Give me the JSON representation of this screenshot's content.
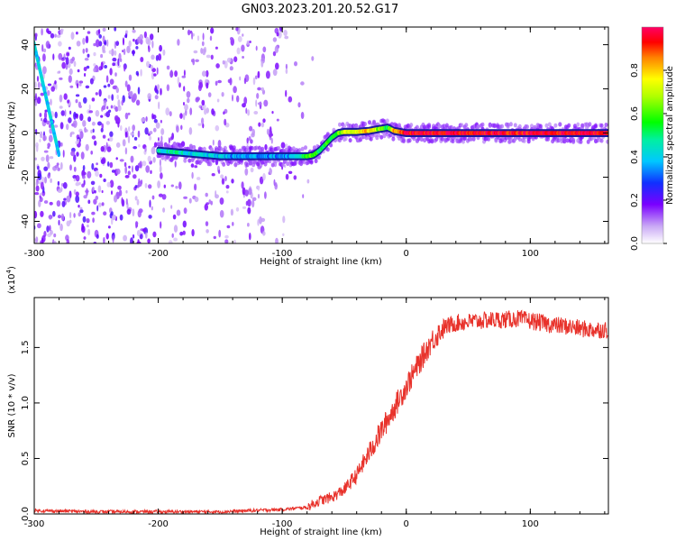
{
  "title": "GN03.2023.201.20.52.G17",
  "chart_data": [
    {
      "type": "heatmap",
      "xlabel": "Height of straight line (km)",
      "ylabel": "Frequency (Hz)",
      "xlim": [
        -300,
        163
      ],
      "ylim": [
        -50,
        48
      ],
      "xticks": [
        -300,
        -200,
        -100,
        0,
        100
      ],
      "xtick_labels": [
        "-300",
        "-200",
        "-100",
        "0",
        "100"
      ],
      "yticks": [
        -40,
        -20,
        0,
        20,
        40
      ],
      "ytick_labels": [
        "-40",
        "-20",
        "0",
        "20",
        "40"
      ],
      "grid": false,
      "colorbar": {
        "label": "Normalized spectral amplitude",
        "range": [
          0,
          1
        ],
        "ticks": [
          0,
          0.2,
          0.4,
          0.6,
          0.8
        ],
        "tick_labels": [
          "0.0",
          "0.2",
          "0.4",
          "0.6",
          "0.8"
        ]
      },
      "ridge": {
        "x": [
          -200,
          -190,
          -180,
          -170,
          -160,
          -150,
          -140,
          -130,
          -120,
          -110,
          -100,
          -90,
          -80,
          -75,
          -70,
          -65,
          -60,
          -55,
          -50,
          -40,
          -30,
          -20,
          -15,
          -10,
          0,
          50,
          100,
          163
        ],
        "y": [
          -8,
          -8.5,
          -9,
          -9.5,
          -10,
          -10.5,
          -10.5,
          -10.5,
          -10.5,
          -10.5,
          -10.5,
          -10.5,
          -10.5,
          -10,
          -8,
          -5,
          -2,
          0,
          0.5,
          0.5,
          1,
          2,
          2.5,
          1,
          0,
          0,
          0,
          0
        ],
        "amplitude": [
          0.45,
          0.45,
          0.45,
          0.4,
          0.4,
          0.4,
          0.35,
          0.35,
          0.35,
          0.35,
          0.35,
          0.35,
          0.6,
          0.6,
          0.55,
          0.55,
          0.55,
          0.6,
          0.7,
          0.75,
          0.8,
          0.6,
          0.55,
          0.8,
          0.95,
          0.95,
          0.95,
          0.95
        ]
      },
      "trace": {
        "x": [
          -304,
          -300,
          -296,
          -292,
          -288,
          -284,
          -280
        ],
        "y": [
          48,
          40,
          30,
          20,
          10,
          0,
          -10
        ]
      }
    },
    {
      "type": "line",
      "xlabel": "Height of straight line (km)",
      "ylabel": "SNR (10 * v/v)",
      "y_multiplier_label": "(x10",
      "y_multiplier_exp": "4",
      "xlim": [
        -300,
        163
      ],
      "ylim": [
        0,
        1.95
      ],
      "xticks": [
        -300,
        -200,
        -100,
        0,
        100
      ],
      "xtick_labels": [
        "-300",
        "-200",
        "-100",
        "0",
        "100"
      ],
      "yticks": [
        0,
        0.5,
        1.0,
        1.5
      ],
      "ytick_labels": [
        "0.0",
        "0.5",
        "1.0",
        "1.5"
      ],
      "grid": false,
      "series": [
        {
          "color": "#e8322b",
          "x": [
            -300,
            -250,
            -200,
            -150,
            -100,
            -80,
            -70,
            -60,
            -50,
            -40,
            -30,
            -20,
            -10,
            0,
            10,
            20,
            30,
            40,
            50,
            60,
            70,
            80,
            90,
            100,
            110,
            120,
            130,
            140,
            150,
            163
          ],
          "y": [
            0.03,
            0.02,
            0.02,
            0.02,
            0.04,
            0.06,
            0.12,
            0.15,
            0.22,
            0.35,
            0.55,
            0.75,
            0.95,
            1.15,
            1.35,
            1.55,
            1.68,
            1.72,
            1.73,
            1.74,
            1.75,
            1.75,
            1.76,
            1.74,
            1.72,
            1.7,
            1.69,
            1.67,
            1.66,
            1.66
          ]
        }
      ]
    }
  ]
}
